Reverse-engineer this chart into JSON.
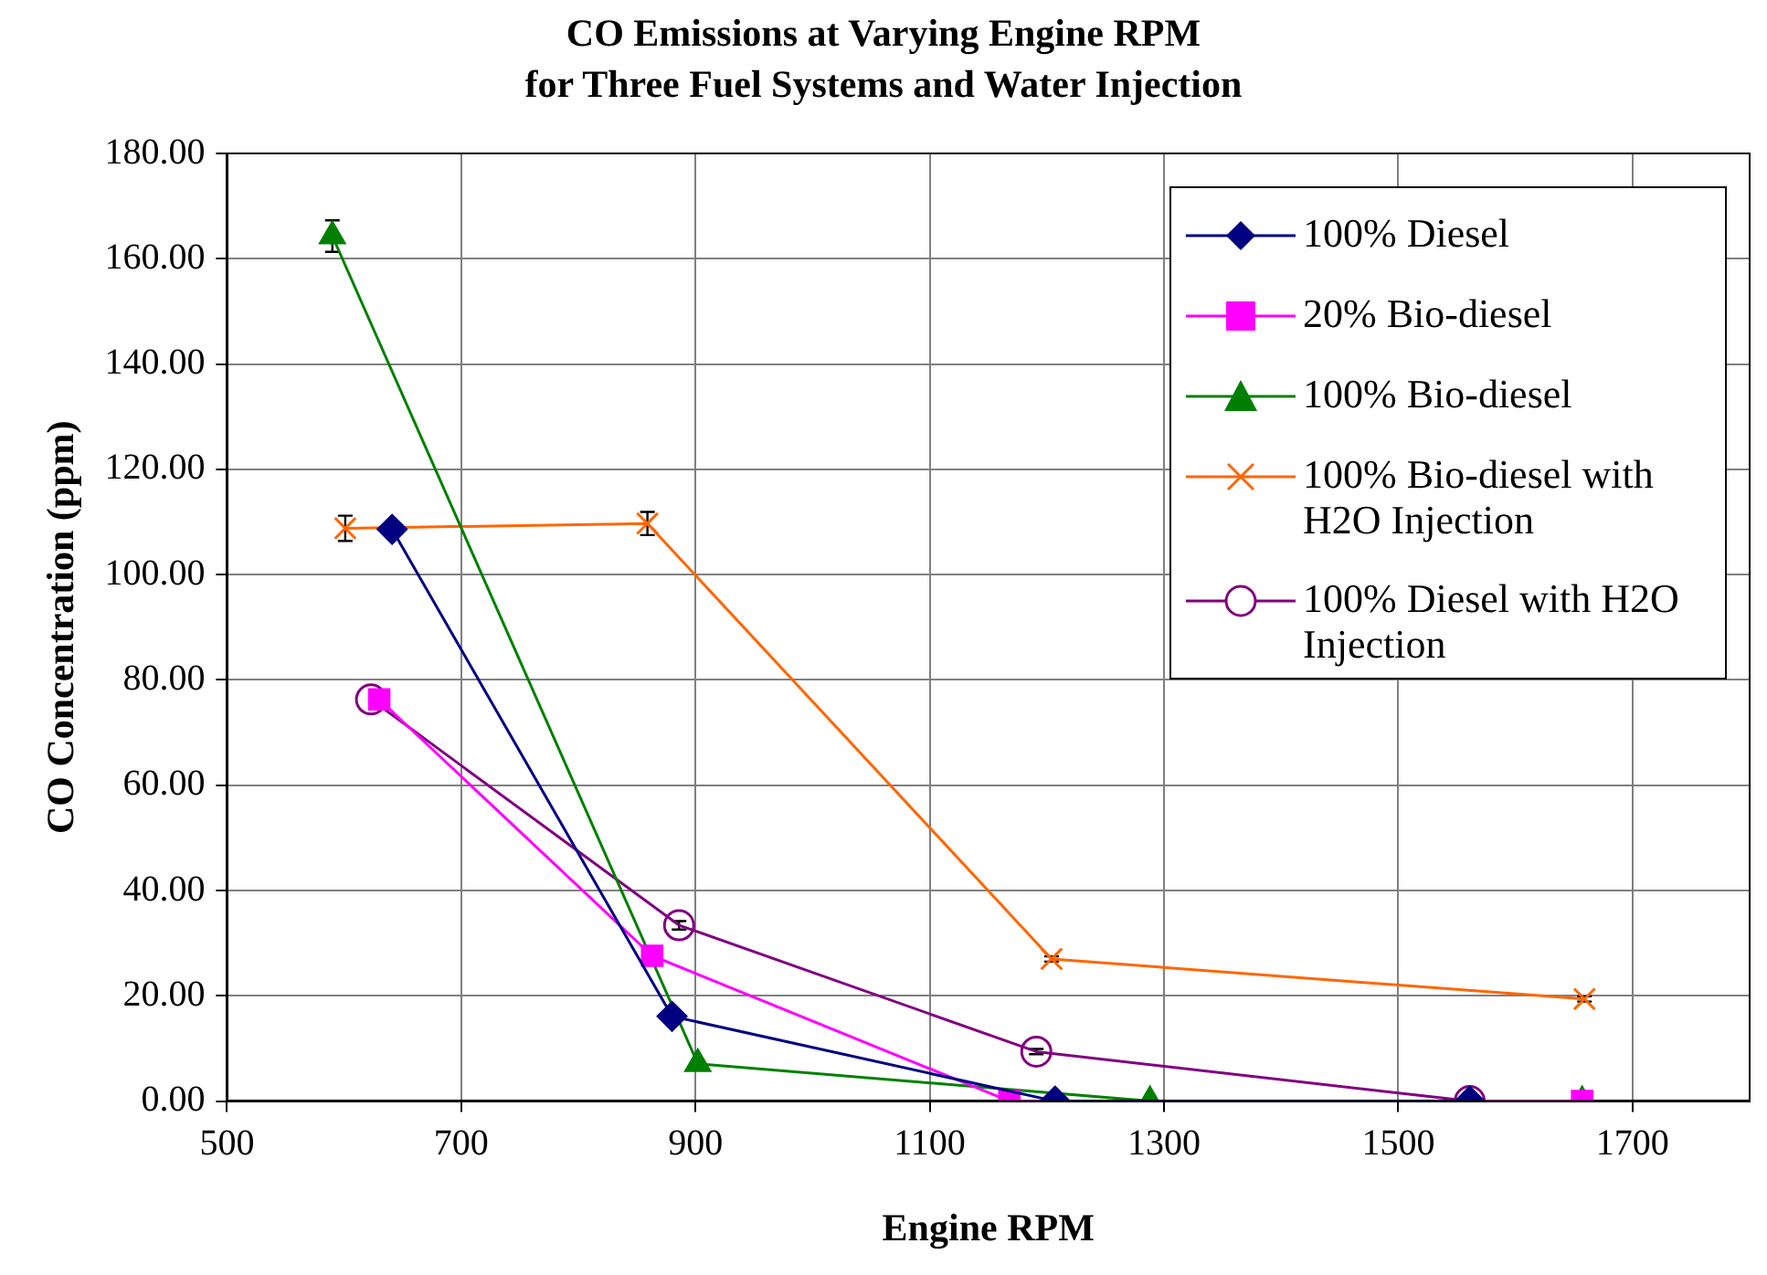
{
  "chart_data": {
    "type": "line",
    "title": "CO Emissions at Varying Engine RPM\nfor Three Fuel Systems and Water Injection",
    "xlabel": "Engine RPM",
    "ylabel": "CO Concentration (ppm)",
    "xlim": [
      500,
      1800
    ],
    "xticks": [
      500,
      700,
      900,
      1100,
      1300,
      1500,
      1700
    ],
    "ylim": [
      0,
      180
    ],
    "yticks": [
      {
        "value": 0,
        "label": "0.00"
      },
      {
        "value": 20,
        "label": "20.00"
      },
      {
        "value": 40,
        "label": "40.00"
      },
      {
        "value": 60,
        "label": "60.00"
      },
      {
        "value": 80,
        "label": "80.00"
      },
      {
        "value": 100,
        "label": "100.00"
      },
      {
        "value": 120,
        "label": "120.00"
      },
      {
        "value": 140,
        "label": "140.00"
      },
      {
        "value": 160,
        "label": "160.00"
      },
      {
        "value": 180,
        "label": "180.00"
      }
    ],
    "grid": true,
    "legend": "top right",
    "series": [
      {
        "name": "100% Diesel",
        "color": "#000080",
        "marker": "diamond",
        "x": [
          641,
          880,
          1207,
          1561
        ],
        "values": [
          108.6,
          16.1,
          0,
          0
        ]
      },
      {
        "name": "20% Bio-diesel",
        "color": "#ff00ff",
        "marker": "square",
        "x": [
          630,
          863,
          1168,
          1657
        ],
        "values": [
          76.3,
          27.6,
          0,
          0
        ]
      },
      {
        "name": "100% Bio-diesel",
        "color": "#008000",
        "marker": "triangle",
        "x": [
          590,
          902,
          1288,
          1657
        ],
        "values": [
          164.3,
          7.1,
          0,
          0
        ],
        "errors": [
          3,
          null,
          null,
          null
        ]
      },
      {
        "name": "100% Bio-diesel with H2O Injection",
        "color": "#ff6600",
        "marker": "cross",
        "x": [
          601,
          859,
          1204,
          1659
        ],
        "values": [
          108.8,
          109.7,
          27,
          19.4
        ],
        "errors": [
          2.4,
          2.2,
          0.5,
          0.5
        ]
      },
      {
        "name": "100% Diesel with H2O Injection",
        "color": "#800080",
        "marker": "circle",
        "x": [
          623,
          886,
          1191,
          1561
        ],
        "values": [
          76.3,
          33.4,
          9.4,
          0
        ],
        "errors": [
          null,
          0.8,
          0.5,
          null
        ]
      }
    ]
  }
}
